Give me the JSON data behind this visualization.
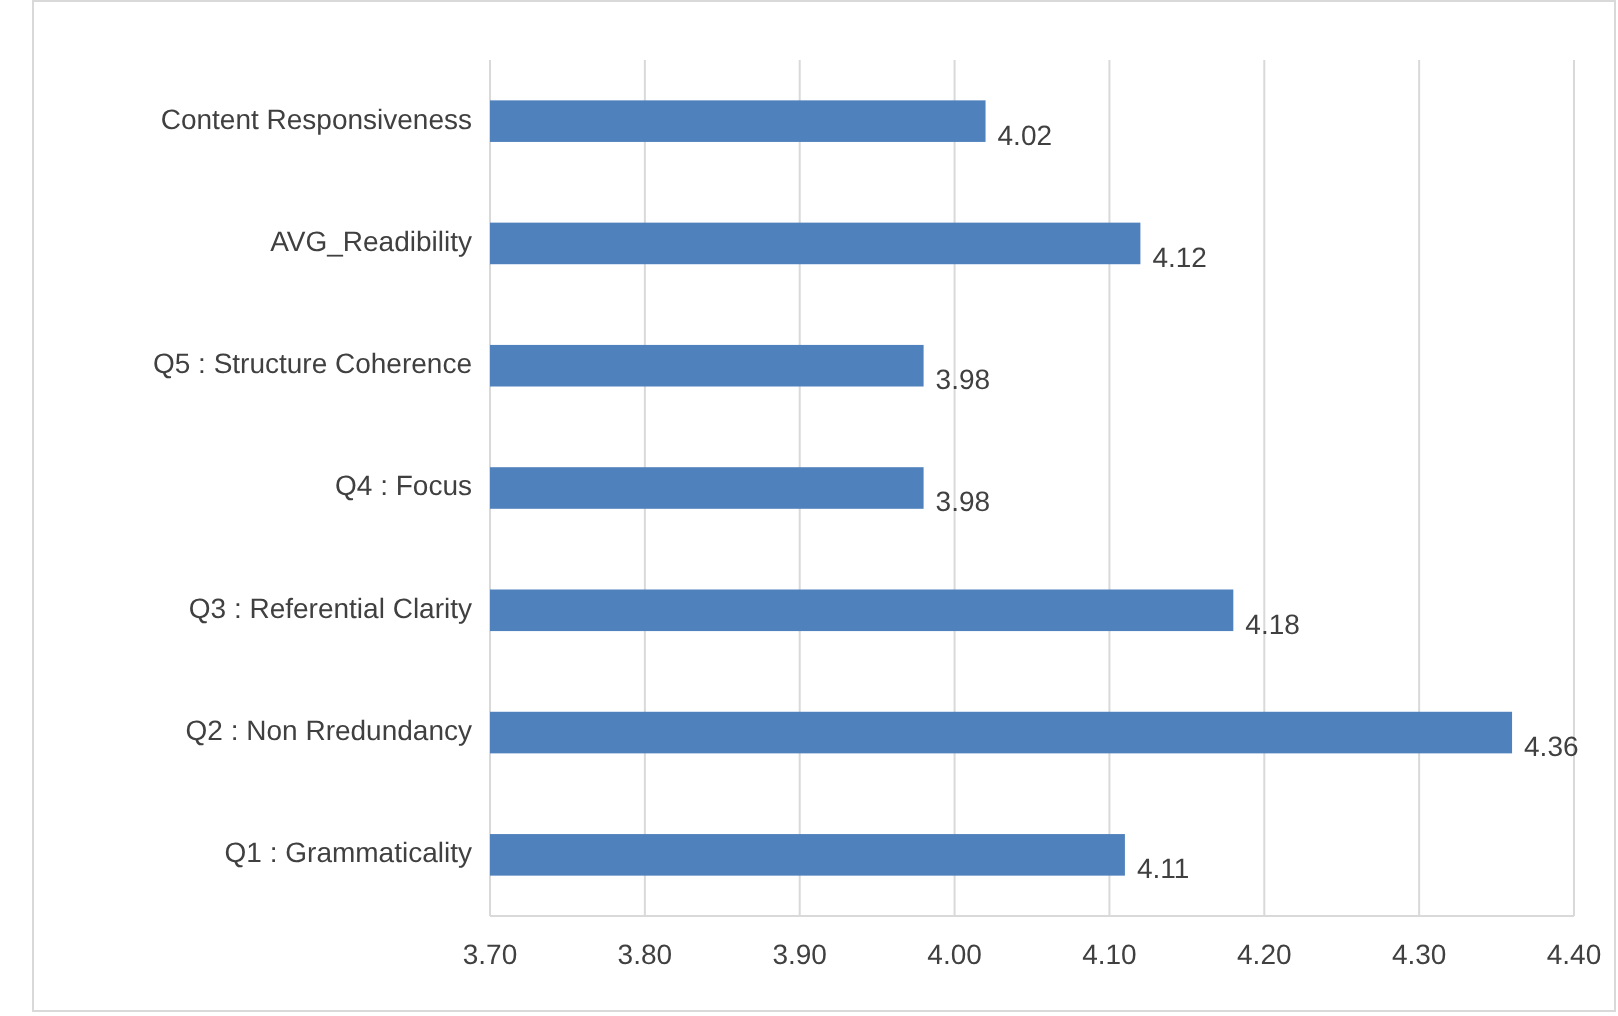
{
  "chart_data": {
    "type": "bar",
    "orientation": "horizontal",
    "categories": [
      "Content Responsiveness",
      "AVG_Readibility",
      "Q5 : Structure Coherence",
      "Q4 : Focus",
      "Q3 : Referential Clarity",
      "Q2 : Non Rredundancy",
      "Q1 : Grammaticality"
    ],
    "values": [
      4.02,
      4.12,
      3.98,
      3.98,
      4.18,
      4.36,
      4.11
    ],
    "color": "#4f81bd",
    "xlim": [
      3.7,
      4.4
    ],
    "xticks": [
      {
        "value": 3.7,
        "label": "3.70"
      },
      {
        "value": 3.8,
        "label": "3.80"
      },
      {
        "value": 3.9,
        "label": "3.90"
      },
      {
        "value": 4.0,
        "label": "4.00"
      },
      {
        "value": 4.1,
        "label": "4.10"
      },
      {
        "value": 4.2,
        "label": "4.20"
      },
      {
        "value": 4.3,
        "label": "4.30"
      },
      {
        "value": 4.4,
        "label": "4.40"
      }
    ],
    "grid": "x",
    "data_labels": true
  }
}
